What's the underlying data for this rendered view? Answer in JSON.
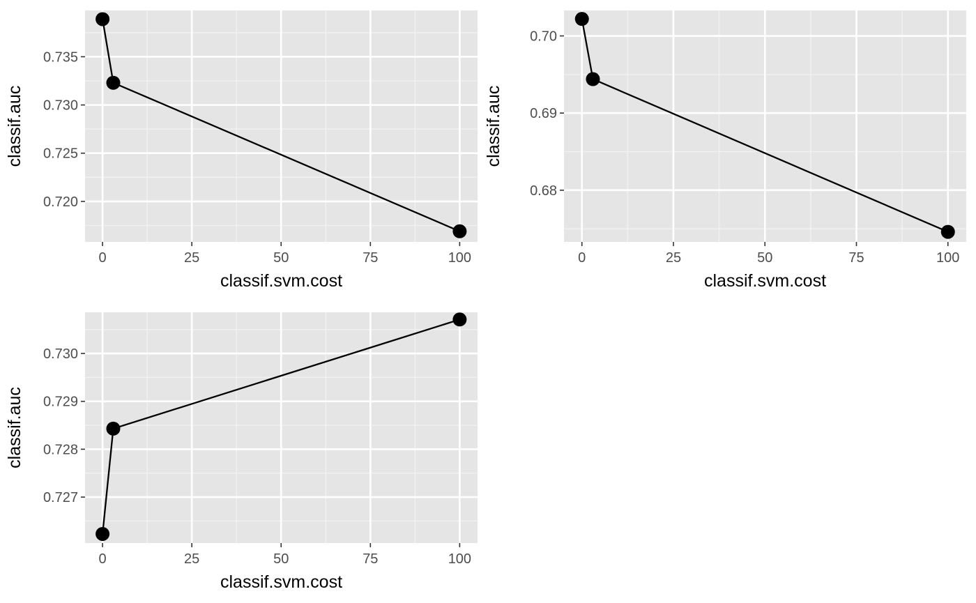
{
  "chart_data": [
    {
      "type": "line",
      "panel": "top-left",
      "title": "",
      "xlabel": "classif.svm.cost",
      "ylabel": "classif.auc",
      "xlim": [
        -4.9,
        105
      ],
      "ylim": [
        0.7158,
        0.7398
      ],
      "xticks": [
        0,
        25,
        50,
        75,
        100
      ],
      "xtick_labels": [
        "0",
        "25",
        "50",
        "75",
        "100"
      ],
      "yticks": [
        0.72,
        0.725,
        0.73,
        0.735
      ],
      "ytick_labels": [
        "0.720",
        "0.725",
        "0.730",
        "0.735"
      ],
      "grid": true,
      "markers": true,
      "series": [
        {
          "x": [
            0,
            3,
            100
          ],
          "y": [
            0.7389,
            0.7323,
            0.7169
          ]
        }
      ]
    },
    {
      "type": "line",
      "panel": "top-right",
      "title": "",
      "xlabel": "classif.svm.cost",
      "ylabel": "classif.auc",
      "xlim": [
        -4.9,
        105
      ],
      "ylim": [
        0.6733,
        0.7033
      ],
      "xticks": [
        0,
        25,
        50,
        75,
        100
      ],
      "xtick_labels": [
        "0",
        "25",
        "50",
        "75",
        "100"
      ],
      "yticks": [
        0.68,
        0.69,
        0.7
      ],
      "ytick_labels": [
        "0.68",
        "0.69",
        "0.70"
      ],
      "grid": true,
      "markers": true,
      "series": [
        {
          "x": [
            0,
            3,
            100
          ],
          "y": [
            0.7022,
            0.6944,
            0.6746
          ]
        }
      ]
    },
    {
      "type": "line",
      "panel": "bottom-left",
      "title": "",
      "xlabel": "classif.svm.cost",
      "ylabel": "classif.auc",
      "xlim": [
        -4.9,
        105
      ],
      "ylim": [
        0.72604,
        0.73086
      ],
      "xticks": [
        0,
        25,
        50,
        75,
        100
      ],
      "xtick_labels": [
        "0",
        "25",
        "50",
        "75",
        "100"
      ],
      "yticks": [
        0.727,
        0.728,
        0.729,
        0.73
      ],
      "ytick_labels": [
        "0.727",
        "0.728",
        "0.729",
        "0.730"
      ],
      "grid": true,
      "markers": true,
      "series": [
        {
          "x": [
            0,
            3,
            100
          ],
          "y": [
            0.72623,
            0.72843,
            0.73071
          ]
        }
      ]
    }
  ]
}
